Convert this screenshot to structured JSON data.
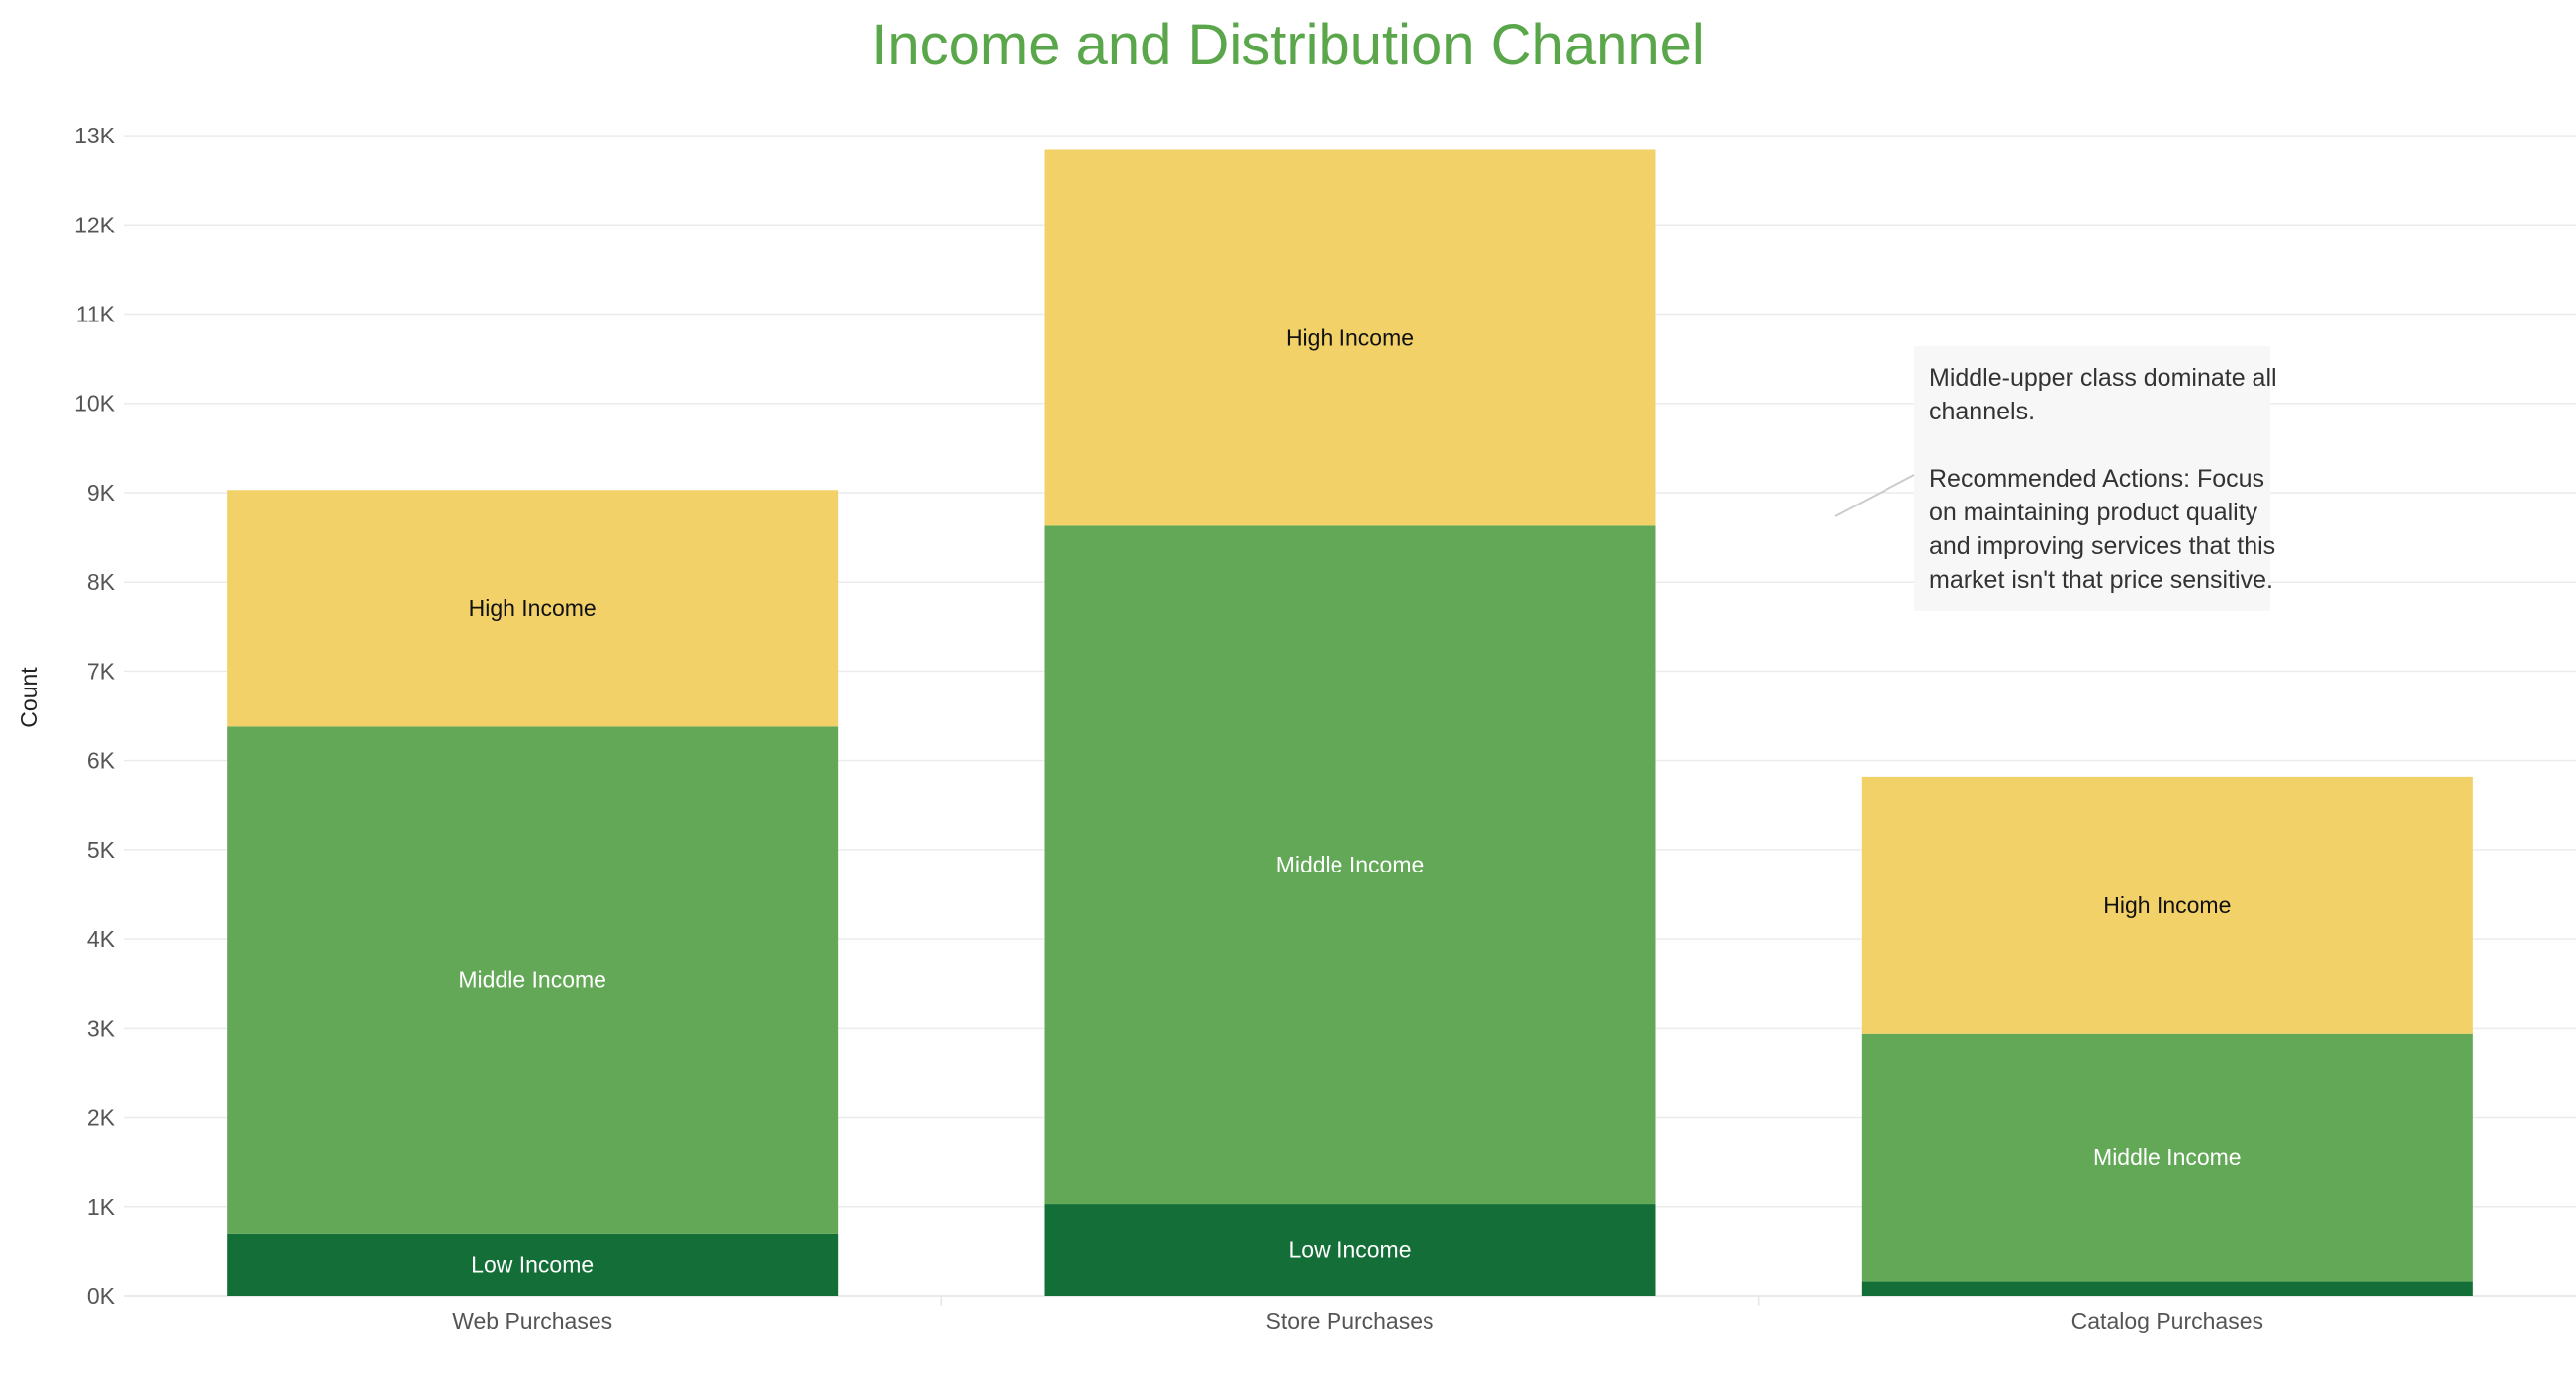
{
  "chart_data": {
    "type": "bar",
    "stacked": true,
    "title": "Income and Distribution Channel",
    "xlabel": "",
    "ylabel": "Count",
    "ylim": [
      0,
      13300
    ],
    "y_ticks": [
      0,
      1000,
      2000,
      3000,
      4000,
      5000,
      6000,
      7000,
      8000,
      9000,
      10000,
      11000,
      12000,
      13000
    ],
    "y_tick_labels": [
      "0K",
      "1K",
      "2K",
      "3K",
      "4K",
      "5K",
      "6K",
      "7K",
      "8K",
      "9K",
      "10K",
      "11K",
      "12K",
      "13K"
    ],
    "grid": true,
    "legend": "none",
    "categories": [
      "Web Purchases",
      "Store Purchases",
      "Catalog Purchases"
    ],
    "series": [
      {
        "name": "Low Income",
        "values": [
          700,
          1030,
          160
        ],
        "color": "#146e37",
        "label_color": "#ffffff",
        "segment_labels": [
          "Low Income",
          "Low Income",
          ""
        ]
      },
      {
        "name": "Middle Income",
        "values": [
          5680,
          7600,
          2780
        ],
        "color": "#62a856",
        "label_color": "#ffffff",
        "segment_labels": [
          "Middle Income",
          "Middle Income",
          "Middle Income"
        ]
      },
      {
        "name": "High Income",
        "values": [
          2650,
          4210,
          2880
        ],
        "color": "#f2d168",
        "label_color": "#111111",
        "segment_labels": [
          "High Income",
          "High Income",
          "High Income"
        ]
      }
    ],
    "annotation": {
      "lines": [
        "Middle-upper class dominate all",
        "channels.",
        "",
        "Recommended Actions: Focus",
        "on maintaining product quality",
        "and improving services that this",
        "market isn't that price sensitive."
      ]
    }
  }
}
